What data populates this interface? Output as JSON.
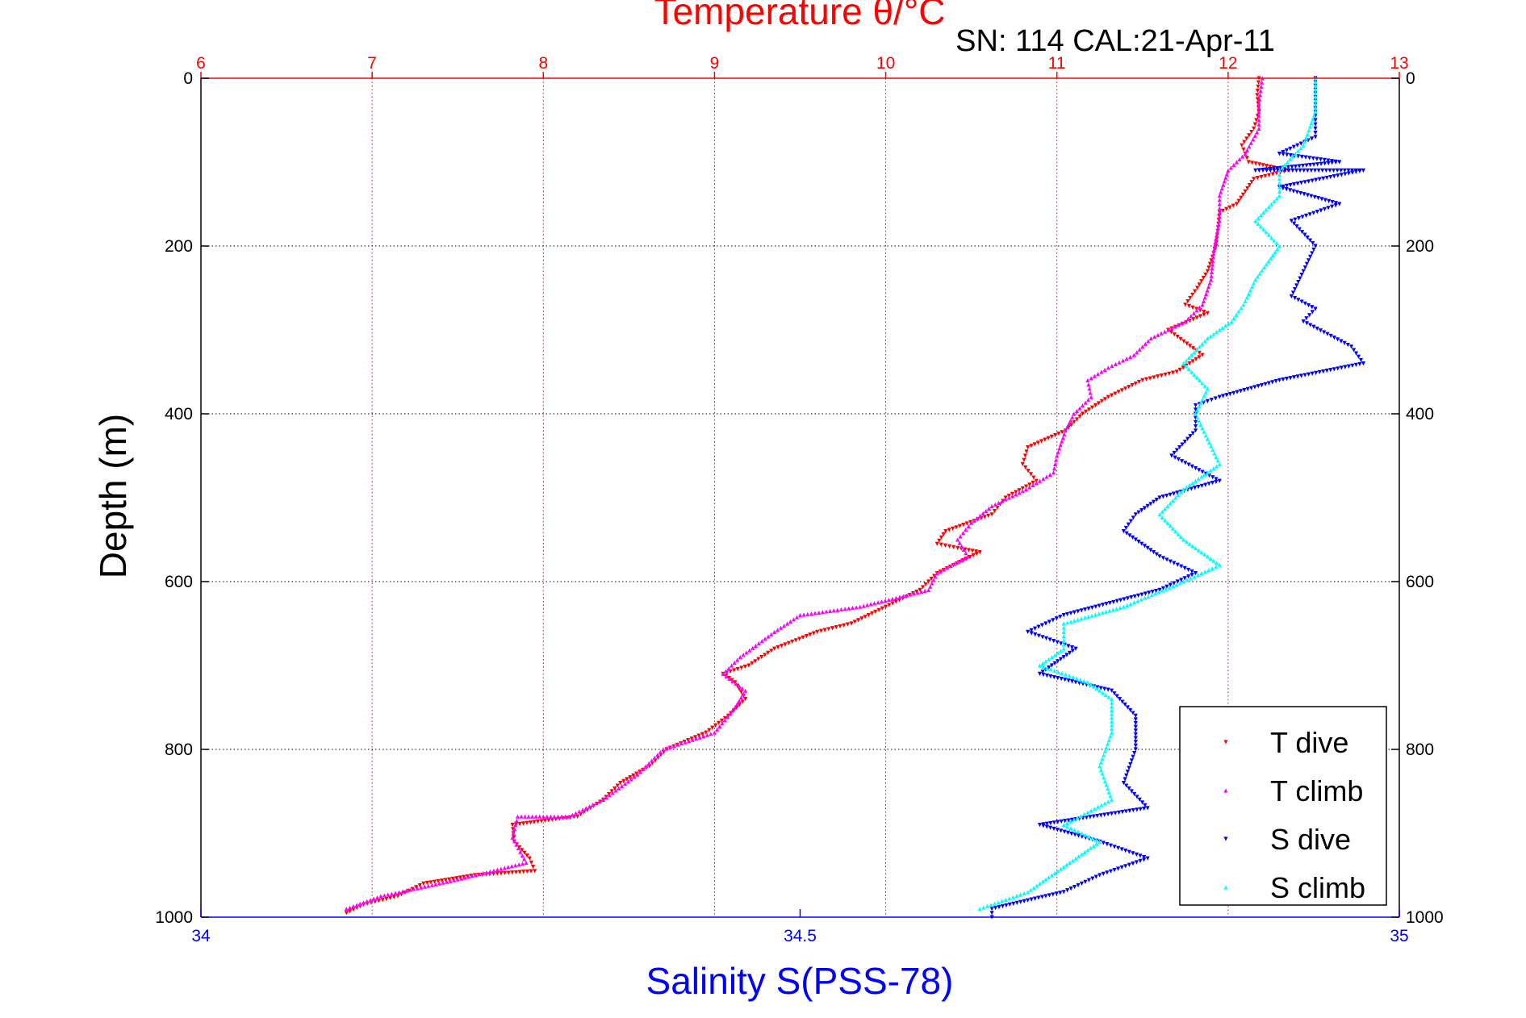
{
  "chart_data": {
    "type": "scatter",
    "title": "Temperature θ/°C",
    "subtitle": "SN: 114  CAL:21-Apr-11",
    "ylabel": "Depth (m)",
    "xlabel_bottom": "Salinity S(PSS-78)",
    "ylim": [
      0,
      1000
    ],
    "y_reversed": true,
    "yticks": [
      "0",
      "200",
      "400",
      "600",
      "800",
      "1000"
    ],
    "temperature_axis": {
      "position": "top",
      "range": [
        6,
        13
      ],
      "ticks": [
        "6",
        "7",
        "8",
        "9",
        "10",
        "11",
        "12",
        "13"
      ],
      "color": "#ff0000",
      "grid": true
    },
    "salinity_axis": {
      "position": "bottom",
      "range": [
        34,
        35
      ],
      "ticks": [
        "34",
        "34.5",
        "35"
      ],
      "color": "#0000ff"
    },
    "horizontal_grid": true,
    "legend": {
      "placement": "bottom-right",
      "entries": [
        "T dive",
        "T climb",
        "S dive",
        "S climb"
      ]
    },
    "series": [
      {
        "name": "T dive",
        "color": "#ff0000",
        "axis": "temperature",
        "points": [
          [
            12.18,
            0
          ],
          [
            12.17,
            20
          ],
          [
            12.18,
            40
          ],
          [
            12.15,
            60
          ],
          [
            12.08,
            80
          ],
          [
            12.12,
            100
          ],
          [
            12.35,
            110
          ],
          [
            12.15,
            120
          ],
          [
            12.05,
            150
          ],
          [
            11.95,
            160
          ],
          [
            11.93,
            200
          ],
          [
            11.88,
            230
          ],
          [
            11.82,
            250
          ],
          [
            11.75,
            270
          ],
          [
            11.88,
            280
          ],
          [
            11.65,
            300
          ],
          [
            11.85,
            330
          ],
          [
            11.7,
            350
          ],
          [
            11.5,
            360
          ],
          [
            11.3,
            380
          ],
          [
            11.15,
            400
          ],
          [
            11.05,
            420
          ],
          [
            10.83,
            440
          ],
          [
            10.8,
            460
          ],
          [
            10.88,
            480
          ],
          [
            10.7,
            500
          ],
          [
            10.62,
            520
          ],
          [
            10.35,
            540
          ],
          [
            10.3,
            555
          ],
          [
            10.42,
            560
          ],
          [
            10.55,
            565
          ],
          [
            10.3,
            590
          ],
          [
            10.2,
            610
          ],
          [
            10.0,
            630
          ],
          [
            9.8,
            650
          ],
          [
            9.6,
            660
          ],
          [
            9.35,
            680
          ],
          [
            9.2,
            700
          ],
          [
            9.05,
            710
          ],
          [
            9.12,
            720
          ],
          [
            9.18,
            740
          ],
          [
            9.08,
            760
          ],
          [
            8.95,
            780
          ],
          [
            8.72,
            800
          ],
          [
            8.62,
            820
          ],
          [
            8.45,
            840
          ],
          [
            8.35,
            860
          ],
          [
            8.2,
            880
          ],
          [
            7.82,
            890
          ],
          [
            7.83,
            910
          ],
          [
            7.92,
            930
          ],
          [
            7.95,
            945
          ],
          [
            7.6,
            950
          ],
          [
            7.3,
            960
          ],
          [
            7.15,
            975
          ],
          [
            6.95,
            985
          ],
          [
            6.85,
            995
          ]
        ]
      },
      {
        "name": "T climb",
        "color": "#ff00ff",
        "axis": "temperature",
        "points": [
          [
            12.2,
            0
          ],
          [
            12.18,
            30
          ],
          [
            12.18,
            60
          ],
          [
            12.1,
            90
          ],
          [
            12.0,
            110
          ],
          [
            11.95,
            140
          ],
          [
            11.95,
            170
          ],
          [
            11.92,
            200
          ],
          [
            11.9,
            240
          ],
          [
            11.85,
            270
          ],
          [
            11.75,
            290
          ],
          [
            11.55,
            310
          ],
          [
            11.45,
            330
          ],
          [
            11.3,
            345
          ],
          [
            11.18,
            360
          ],
          [
            11.2,
            380
          ],
          [
            11.1,
            400
          ],
          [
            11.05,
            420
          ],
          [
            11.0,
            450
          ],
          [
            10.98,
            470
          ],
          [
            10.82,
            490
          ],
          [
            10.62,
            510
          ],
          [
            10.5,
            530
          ],
          [
            10.42,
            550
          ],
          [
            10.48,
            570
          ],
          [
            10.3,
            590
          ],
          [
            10.25,
            610
          ],
          [
            9.85,
            630
          ],
          [
            9.5,
            640
          ],
          [
            9.35,
            660
          ],
          [
            9.15,
            690
          ],
          [
            9.05,
            710
          ],
          [
            9.18,
            730
          ],
          [
            9.12,
            750
          ],
          [
            9.0,
            780
          ],
          [
            8.7,
            800
          ],
          [
            8.55,
            830
          ],
          [
            8.35,
            860
          ],
          [
            8.15,
            880
          ],
          [
            7.85,
            880
          ],
          [
            7.82,
            905
          ],
          [
            7.9,
            935
          ],
          [
            7.5,
            955
          ],
          [
            7.05,
            975
          ],
          [
            6.85,
            990
          ]
        ]
      },
      {
        "name": "S dive",
        "color": "#0000ff",
        "axis": "salinity",
        "points": [
          [
            34.93,
            0
          ],
          [
            34.93,
            40
          ],
          [
            34.93,
            70
          ],
          [
            34.9,
            90
          ],
          [
            34.95,
            100
          ],
          [
            34.88,
            110
          ],
          [
            34.97,
            110
          ],
          [
            34.9,
            130
          ],
          [
            34.95,
            150
          ],
          [
            34.91,
            170
          ],
          [
            34.93,
            200
          ],
          [
            34.92,
            230
          ],
          [
            34.91,
            260
          ],
          [
            34.93,
            275
          ],
          [
            34.92,
            290
          ],
          [
            34.96,
            320
          ],
          [
            34.97,
            340
          ],
          [
            34.9,
            360
          ],
          [
            34.85,
            380
          ],
          [
            34.83,
            390
          ],
          [
            34.83,
            420
          ],
          [
            34.81,
            450
          ],
          [
            34.85,
            480
          ],
          [
            34.8,
            500
          ],
          [
            34.78,
            520
          ],
          [
            34.77,
            540
          ],
          [
            34.8,
            570
          ],
          [
            34.83,
            590
          ],
          [
            34.8,
            610
          ],
          [
            34.72,
            640
          ],
          [
            34.69,
            660
          ],
          [
            34.73,
            680
          ],
          [
            34.7,
            710
          ],
          [
            34.76,
            730
          ],
          [
            34.78,
            760
          ],
          [
            34.78,
            800
          ],
          [
            34.77,
            840
          ],
          [
            34.79,
            870
          ],
          [
            34.7,
            890
          ],
          [
            34.75,
            910
          ],
          [
            34.79,
            930
          ],
          [
            34.75,
            950
          ],
          [
            34.72,
            970
          ],
          [
            34.66,
            990
          ],
          [
            34.66,
            1000
          ]
        ]
      },
      {
        "name": "S climb",
        "color": "#00ffff",
        "axis": "salinity",
        "points": [
          [
            34.93,
            0
          ],
          [
            34.93,
            40
          ],
          [
            34.92,
            80
          ],
          [
            34.9,
            110
          ],
          [
            34.9,
            140
          ],
          [
            34.88,
            170
          ],
          [
            34.9,
            200
          ],
          [
            34.88,
            240
          ],
          [
            34.87,
            270
          ],
          [
            34.86,
            290
          ],
          [
            34.84,
            310
          ],
          [
            34.82,
            340
          ],
          [
            34.84,
            370
          ],
          [
            34.83,
            400
          ],
          [
            34.84,
            430
          ],
          [
            34.85,
            460
          ],
          [
            34.82,
            490
          ],
          [
            34.8,
            520
          ],
          [
            34.82,
            550
          ],
          [
            34.85,
            580
          ],
          [
            34.82,
            600
          ],
          [
            34.77,
            630
          ],
          [
            34.72,
            650
          ],
          [
            34.72,
            680
          ],
          [
            34.7,
            700
          ],
          [
            34.74,
            720
          ],
          [
            34.76,
            740
          ],
          [
            34.76,
            780
          ],
          [
            34.75,
            820
          ],
          [
            34.76,
            860
          ],
          [
            34.72,
            890
          ],
          [
            34.75,
            910
          ],
          [
            34.72,
            940
          ],
          [
            34.69,
            970
          ],
          [
            34.65,
            990
          ]
        ]
      }
    ]
  }
}
